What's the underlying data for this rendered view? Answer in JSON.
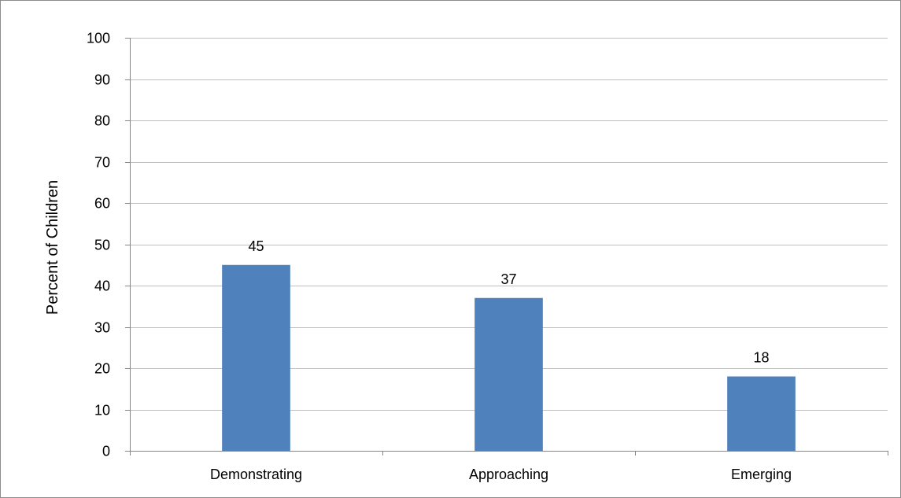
{
  "chart_data": {
    "type": "bar",
    "categories": [
      "Demonstrating",
      "Approaching",
      "Emerging"
    ],
    "values": [
      45,
      37,
      18
    ],
    "data_labels": [
      "45",
      "37",
      "18"
    ],
    "title": "",
    "xlabel": "",
    "ylabel": "Percent of Children",
    "ylim": [
      0,
      100
    ],
    "yticks": [
      0,
      10,
      20,
      30,
      40,
      50,
      60,
      70,
      80,
      90,
      100
    ],
    "grid": true,
    "legend": "none",
    "bar_color": "#4f81bd"
  }
}
